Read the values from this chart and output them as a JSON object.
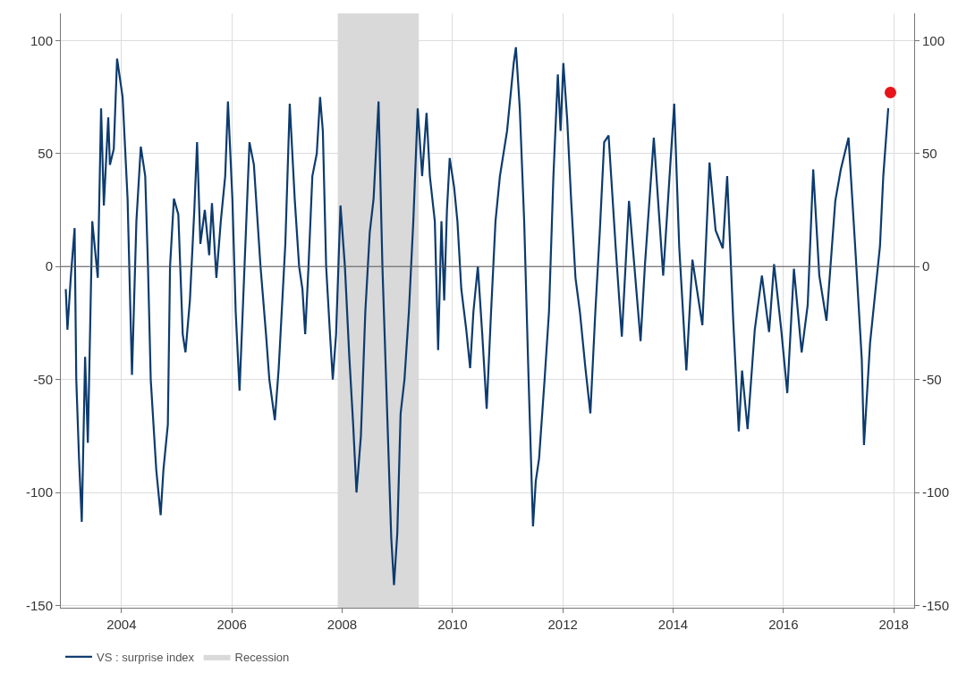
{
  "chart_data": {
    "type": "line",
    "xlim": [
      2002.9,
      2018.37
    ],
    "xticks": [
      2004,
      2006,
      2008,
      2010,
      2012,
      2014,
      2016,
      2018
    ],
    "ylim": [
      -151,
      112
    ],
    "yticks": [
      -150,
      -100,
      -50,
      0,
      50,
      100
    ],
    "y2lim": [
      -151,
      112
    ],
    "y2ticks": [
      -150,
      -100,
      -50,
      0,
      50,
      100
    ],
    "grid": true,
    "legend": "bottom left",
    "marker": "none",
    "line_style": "solid",
    "ref_lines": [
      {
        "axis": "y",
        "value": 0,
        "color": "#555555"
      }
    ],
    "bands": [
      {
        "axis": "x",
        "from": 2007.92,
        "to": 2009.39,
        "label": "Recession",
        "color": "#d9d9d9"
      }
    ],
    "series": [
      {
        "name": "VS : surprise index",
        "color": "#0d3b6e",
        "x": [
          2002.99,
          2003.02,
          2003.08,
          2003.15,
          2003.18,
          2003.23,
          2003.28,
          2003.34,
          2003.39,
          2003.47,
          2003.57,
          2003.63,
          2003.68,
          2003.76,
          2003.79,
          2003.86,
          2003.92,
          2004.02,
          2004.11,
          2004.19,
          2004.27,
          2004.35,
          2004.43,
          2004.48,
          2004.53,
          2004.63,
          2004.71,
          2004.76,
          2004.84,
          2004.88,
          2004.95,
          2005.03,
          2005.11,
          2005.16,
          2005.24,
          2005.32,
          2005.37,
          2005.43,
          2005.51,
          2005.59,
          2005.64,
          2005.72,
          2005.8,
          2005.88,
          2005.93,
          2006.01,
          2006.07,
          2006.14,
          2006.23,
          2006.32,
          2006.4,
          2006.52,
          2006.62,
          2006.68,
          2006.78,
          2006.85,
          2006.97,
          2007.05,
          2007.14,
          2007.22,
          2007.28,
          2007.33,
          2007.39,
          2007.46,
          2007.54,
          2007.6,
          2007.65,
          2007.71,
          2007.78,
          2007.83,
          2007.89,
          2007.97,
          2008.05,
          2008.13,
          2008.2,
          2008.26,
          2008.34,
          2008.42,
          2008.5,
          2008.57,
          2008.66,
          2008.73,
          2008.81,
          2008.89,
          2008.94,
          2009.0,
          2009.06,
          2009.13,
          2009.21,
          2009.29,
          2009.37,
          2009.45,
          2009.53,
          2009.59,
          2009.68,
          2009.74,
          2009.8,
          2009.85,
          2009.9,
          2009.95,
          2010.03,
          2010.09,
          2010.16,
          2010.25,
          2010.32,
          2010.38,
          2010.46,
          2010.54,
          2010.62,
          2010.7,
          2010.78,
          2010.86,
          2010.99,
          2011.11,
          2011.15,
          2011.22,
          2011.3,
          2011.38,
          2011.46,
          2011.51,
          2011.57,
          2011.67,
          2011.75,
          2011.83,
          2011.91,
          2011.96,
          2012.01,
          2012.08,
          2012.15,
          2012.23,
          2012.31,
          2012.41,
          2012.5,
          2012.59,
          2012.67,
          2012.75,
          2012.83,
          2012.89,
          2012.96,
          2013.07,
          2013.2,
          2013.41,
          2013.49,
          2013.65,
          2013.82,
          2014.02,
          2014.11,
          2014.24,
          2014.35,
          2014.53,
          2014.66,
          2014.77,
          2014.9,
          2014.98,
          2015.09,
          2015.19,
          2015.25,
          2015.35,
          2015.48,
          2015.61,
          2015.74,
          2015.83,
          2015.96,
          2016.07,
          2016.19,
          2016.33,
          2016.44,
          2016.54,
          2016.65,
          2016.78,
          2016.94,
          2017.04,
          2017.18,
          2017.3,
          2017.42,
          2017.46,
          2017.57,
          2017.75,
          2017.81,
          2017.9
        ],
        "values": [
          -10,
          -28,
          -5,
          17,
          -50,
          -85,
          -113,
          -40,
          -78,
          20,
          -5,
          70,
          27,
          66,
          45,
          52,
          92,
          75,
          30,
          -48,
          20,
          53,
          40,
          0,
          -50,
          -90,
          -110,
          -90,
          -70,
          0,
          30,
          23,
          -30,
          -38,
          -15,
          25,
          55,
          10,
          25,
          5,
          28,
          -5,
          20,
          40,
          73,
          30,
          -20,
          -55,
          0,
          55,
          45,
          0,
          -30,
          -50,
          -68,
          -45,
          10,
          72,
          30,
          0,
          -10,
          -30,
          0,
          40,
          50,
          75,
          60,
          0,
          -30,
          -50,
          -30,
          27,
          0,
          -40,
          -70,
          -100,
          -75,
          -20,
          15,
          30,
          73,
          0,
          -60,
          -120,
          -141,
          -118,
          -65,
          -50,
          -20,
          20,
          70,
          40,
          68,
          40,
          20,
          -37,
          20,
          -15,
          25,
          48,
          35,
          20,
          -10,
          -28,
          -45,
          -20,
          0,
          -30,
          -63,
          -20,
          20,
          40,
          60,
          90,
          97,
          70,
          20,
          -50,
          -115,
          -95,
          -85,
          -50,
          -20,
          40,
          85,
          60,
          90,
          65,
          30,
          -5,
          -20,
          -45,
          -65,
          -20,
          15,
          55,
          58,
          35,
          8,
          -31,
          29,
          -33,
          1,
          57,
          -4,
          72,
          9,
          -46,
          3,
          -26,
          46,
          16,
          8,
          40,
          -24,
          -73,
          -46,
          -72,
          -28,
          -4,
          -29,
          1,
          -28,
          -56,
          -1,
          -38,
          -17,
          43,
          -4,
          -24,
          29,
          43,
          57,
          9,
          -41,
          -79,
          -34,
          9,
          40,
          70
        ]
      },
      {
        "type": "scatter",
        "marker": "circle",
        "color": "#e8141b",
        "x": [
          2017.94
        ],
        "values": [
          77
        ]
      }
    ]
  }
}
